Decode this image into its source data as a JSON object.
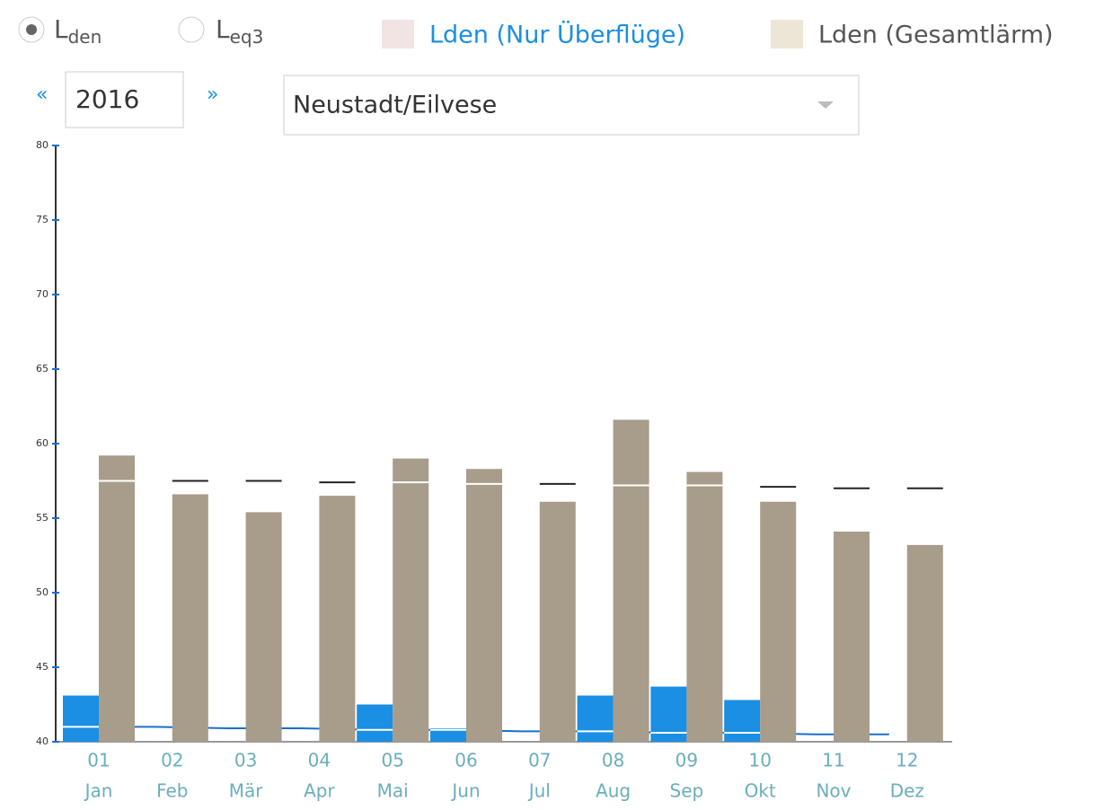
{
  "controls": {
    "radios": [
      {
        "main": "L",
        "sub": "den",
        "checked": true
      },
      {
        "main": "L",
        "sub": "eq3",
        "checked": false
      }
    ],
    "prev": "«",
    "year": "2016",
    "next": "»",
    "station": "Neustadt/Eilvese"
  },
  "chart_data": {
    "type": "bar",
    "categories": [
      "01",
      "02",
      "03",
      "04",
      "05",
      "06",
      "07",
      "08",
      "09",
      "10",
      "11",
      "12"
    ],
    "category_names": [
      "Jan",
      "Feb",
      "Mär",
      "Apr",
      "Mai",
      "Jun",
      "Jul",
      "Aug",
      "Sep",
      "Okt",
      "Nov",
      "Dez"
    ],
    "series": [
      {
        "name": "Lden (Nur Überflüge)",
        "color": "#1a8fe3",
        "values": [
          43.1,
          null,
          null,
          null,
          42.5,
          40.9,
          null,
          43.1,
          43.7,
          42.8,
          null,
          null
        ]
      },
      {
        "name": "Lden (Gesamtlärm)",
        "color": "#a89c8a",
        "values": [
          59.2,
          56.6,
          55.4,
          56.5,
          59.0,
          58.3,
          56.1,
          61.6,
          58.1,
          56.1,
          54.1,
          53.2
        ]
      }
    ],
    "lines": [
      {
        "color": "#1a6fd0",
        "values": [
          41.0,
          41.0,
          40.9,
          40.9,
          40.8,
          40.8,
          40.7,
          40.7,
          40.6,
          40.6,
          40.5,
          40.5
        ]
      },
      {
        "color": "#222222",
        "values": [
          57.5,
          57.5,
          57.5,
          57.4,
          57.4,
          57.3,
          57.3,
          57.2,
          57.2,
          57.1,
          57.0,
          57.0
        ]
      }
    ],
    "ylim": [
      40,
      80
    ],
    "yticks": [
      40,
      45,
      50,
      55,
      60,
      65,
      70,
      75,
      80
    ]
  }
}
